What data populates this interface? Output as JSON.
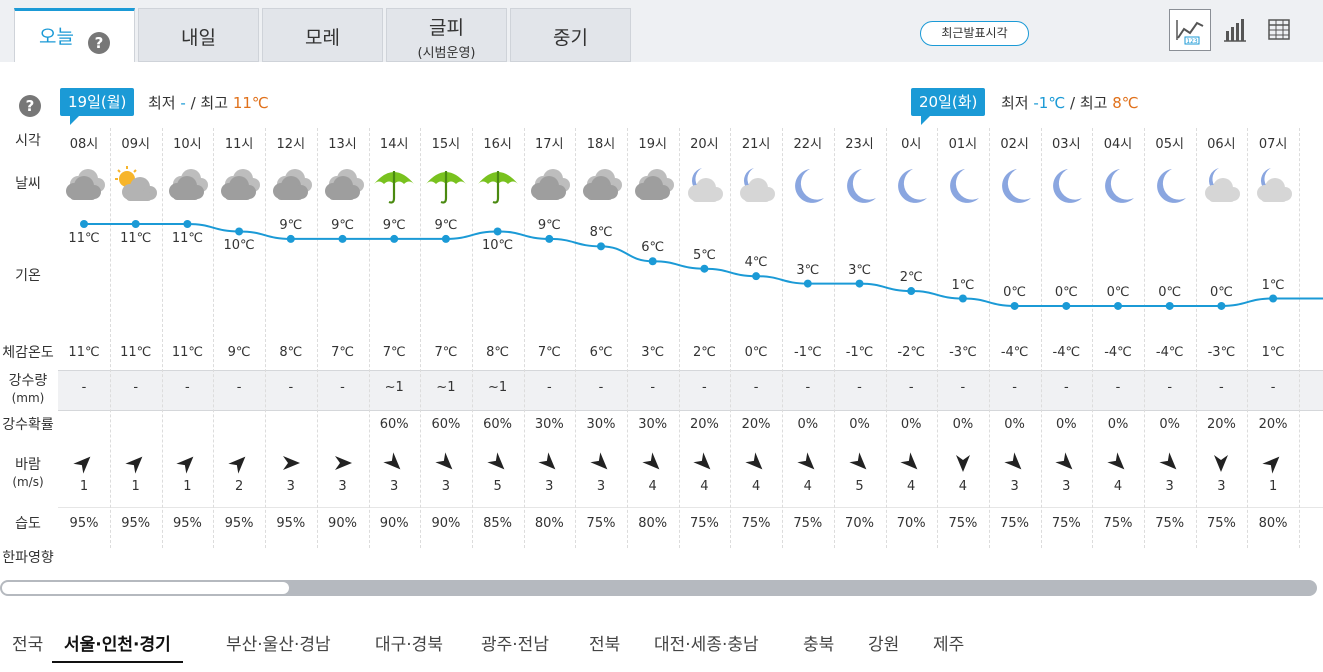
{
  "tabs": [
    {
      "label": "오늘",
      "sub": ""
    },
    {
      "label": "내일",
      "sub": ""
    },
    {
      "label": "모레",
      "sub": ""
    },
    {
      "label": "글피",
      "sub": "(시범운영)"
    },
    {
      "label": "중기",
      "sub": ""
    }
  ],
  "help_symbol": "?",
  "recent_button": "최근발표시각",
  "view_buttons": [
    "graph-icon",
    "bar-chart-icon",
    "table-icon"
  ],
  "days": [
    {
      "badge": "19일(월)",
      "min_label": "최저",
      "min": "-",
      "max_label": "최고",
      "max": "11℃"
    },
    {
      "badge": "20일(화)",
      "min_label": "최저",
      "min": "-1℃",
      "max_label": "최고",
      "max": "8℃"
    }
  ],
  "row_labels": {
    "time": "시각",
    "weather": "날씨",
    "temp": "기온",
    "feels": "체감온도",
    "rain": "강수량",
    "rain_unit": "(mm)",
    "prob": "강수확률",
    "wind": "바람",
    "wind_unit": "(m/s)",
    "humidity": "습도",
    "cold": "한파영향"
  },
  "hours": [
    {
      "time": "08시",
      "weather": "cloudy",
      "temp": "11℃",
      "t": 11,
      "feels": "11℃",
      "rain": "-",
      "prob": "",
      "wind_dir": "NE",
      "wind": "1",
      "hum": "95%"
    },
    {
      "time": "09시",
      "weather": "partly-cloudy",
      "temp": "11℃",
      "t": 11,
      "feels": "11℃",
      "rain": "-",
      "prob": "",
      "wind_dir": "NE",
      "wind": "1",
      "hum": "95%"
    },
    {
      "time": "10시",
      "weather": "cloudy",
      "temp": "11℃",
      "t": 11,
      "feels": "11℃",
      "rain": "-",
      "prob": "",
      "wind_dir": "NE",
      "wind": "1",
      "hum": "95%"
    },
    {
      "time": "11시",
      "weather": "cloudy",
      "temp": "10℃",
      "t": 10,
      "feels": "9℃",
      "rain": "-",
      "prob": "",
      "wind_dir": "NE",
      "wind": "2",
      "hum": "95%"
    },
    {
      "time": "12시",
      "weather": "cloudy",
      "temp": "9℃",
      "t": 9,
      "feels": "8℃",
      "rain": "-",
      "prob": "",
      "wind_dir": "E",
      "wind": "3",
      "hum": "95%"
    },
    {
      "time": "13시",
      "weather": "cloudy",
      "temp": "9℃",
      "t": 9,
      "feels": "7℃",
      "rain": "-",
      "prob": "",
      "wind_dir": "E",
      "wind": "3",
      "hum": "90%"
    },
    {
      "time": "14시",
      "weather": "rain",
      "temp": "9℃",
      "t": 9,
      "feels": "7℃",
      "rain": "~1",
      "prob": "60%",
      "wind_dir": "SE",
      "wind": "3",
      "hum": "90%"
    },
    {
      "time": "15시",
      "weather": "rain",
      "temp": "9℃",
      "t": 9,
      "feels": "7℃",
      "rain": "~1",
      "prob": "60%",
      "wind_dir": "SE",
      "wind": "3",
      "hum": "90%"
    },
    {
      "time": "16시",
      "weather": "rain",
      "temp": "10℃",
      "t": 10,
      "feels": "8℃",
      "rain": "~1",
      "prob": "60%",
      "wind_dir": "SE",
      "wind": "5",
      "hum": "85%"
    },
    {
      "time": "17시",
      "weather": "cloudy",
      "temp": "9℃",
      "t": 9,
      "feels": "7℃",
      "rain": "-",
      "prob": "30%",
      "wind_dir": "SE",
      "wind": "3",
      "hum": "80%"
    },
    {
      "time": "18시",
      "weather": "cloudy",
      "temp": "8℃",
      "t": 8,
      "feels": "6℃",
      "rain": "-",
      "prob": "30%",
      "wind_dir": "SE",
      "wind": "3",
      "hum": "75%"
    },
    {
      "time": "19시",
      "weather": "cloudy",
      "temp": "6℃",
      "t": 6,
      "feels": "3℃",
      "rain": "-",
      "prob": "30%",
      "wind_dir": "SE",
      "wind": "4",
      "hum": "80%"
    },
    {
      "time": "20시",
      "weather": "night-cloudy",
      "temp": "5℃",
      "t": 5,
      "feels": "2℃",
      "rain": "-",
      "prob": "20%",
      "wind_dir": "SE",
      "wind": "4",
      "hum": "75%"
    },
    {
      "time": "21시",
      "weather": "night-cloudy",
      "temp": "4℃",
      "t": 4,
      "feels": "0℃",
      "rain": "-",
      "prob": "20%",
      "wind_dir": "SE",
      "wind": "4",
      "hum": "75%"
    },
    {
      "time": "22시",
      "weather": "moon",
      "temp": "3℃",
      "t": 3,
      "feels": "-1℃",
      "rain": "-",
      "prob": "0%",
      "wind_dir": "SE",
      "wind": "4",
      "hum": "75%"
    },
    {
      "time": "23시",
      "weather": "moon",
      "temp": "3℃",
      "t": 3,
      "feels": "-1℃",
      "rain": "-",
      "prob": "0%",
      "wind_dir": "SE",
      "wind": "5",
      "hum": "70%"
    },
    {
      "time": "0시",
      "weather": "moon",
      "temp": "2℃",
      "t": 2,
      "feels": "-2℃",
      "rain": "-",
      "prob": "0%",
      "wind_dir": "SE",
      "wind": "4",
      "hum": "70%"
    },
    {
      "time": "01시",
      "weather": "moon",
      "temp": "1℃",
      "t": 1,
      "feels": "-3℃",
      "rain": "-",
      "prob": "0%",
      "wind_dir": "S",
      "wind": "4",
      "hum": "75%"
    },
    {
      "time": "02시",
      "weather": "moon",
      "temp": "0℃",
      "t": 0,
      "feels": "-4℃",
      "rain": "-",
      "prob": "0%",
      "wind_dir": "SE",
      "wind": "3",
      "hum": "75%"
    },
    {
      "time": "03시",
      "weather": "moon",
      "temp": "0℃",
      "t": 0,
      "feels": "-4℃",
      "rain": "-",
      "prob": "0%",
      "wind_dir": "SE",
      "wind": "3",
      "hum": "75%"
    },
    {
      "time": "04시",
      "weather": "moon",
      "temp": "0℃",
      "t": 0,
      "feels": "-4℃",
      "rain": "-",
      "prob": "0%",
      "wind_dir": "SE",
      "wind": "4",
      "hum": "75%"
    },
    {
      "time": "05시",
      "weather": "moon",
      "temp": "0℃",
      "t": 0,
      "feels": "-4℃",
      "rain": "-",
      "prob": "0%",
      "wind_dir": "SE",
      "wind": "3",
      "hum": "75%"
    },
    {
      "time": "06시",
      "weather": "night-cloudy",
      "temp": "0℃",
      "t": 0,
      "feels": "-3℃",
      "rain": "-",
      "prob": "20%",
      "wind_dir": "S",
      "wind": "3",
      "hum": "75%"
    },
    {
      "time": "07시",
      "weather": "night-cloudy",
      "temp": "1℃",
      "t": 1,
      "feels": "1℃",
      "rain": "-",
      "prob": "20%",
      "wind_dir": "NE",
      "wind": "1",
      "hum": "80%"
    }
  ],
  "regions": [
    "전국",
    "서울·인천·경기",
    "부산·울산·경남",
    "대구·경북",
    "광주·전남",
    "전북",
    "대전·세종·충남",
    "충북",
    "강원",
    "제주"
  ],
  "active_region": 1,
  "colors": {
    "accent": "#1b9ad6",
    "max": "#e0711b",
    "umbrella": "#79c21f",
    "moon": "#8aa6e0"
  }
}
